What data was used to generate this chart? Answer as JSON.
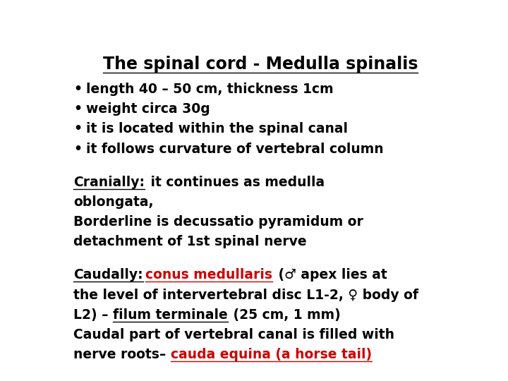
{
  "bg_color": "#ffffff",
  "title": "The spinal cord - Medulla spinalis",
  "title_fontsize": 17,
  "body_fontsize": 13.5,
  "body_color": "#000000",
  "red_color": "#cc0000",
  "bullet_lines": [
    "length 40 – 50 cm, thickness 1cm",
    "weight circa 30g",
    "it is located within the spinal canal",
    "it follows curvature of vertebral column"
  ],
  "cranially_section": {
    "underline_word": "Cranially:",
    "rest_line1": " it continues as medulla",
    "line2": "oblongata,",
    "line3": "Borderline is decussatio pyramidum or",
    "line4": "detachment of 1st spinal nerve"
  },
  "caudally_section": {
    "underline_word": "Caudally:",
    "red_underline": "conus medullaris",
    "rest_line1": " (♂ apex lies at",
    "line2": "the level of intervertebral disc L1-2, ♀ body of",
    "line3_prefix": "L2) – ",
    "line3_underline": "filum terminale",
    "line3_rest": " (25 cm, 1 mm)",
    "line4": "Caudal part of vertebral canal is filled with",
    "line5_prefix": "nerve roots– ",
    "line5_red_underline": "cauda equina (a horse tail)"
  }
}
